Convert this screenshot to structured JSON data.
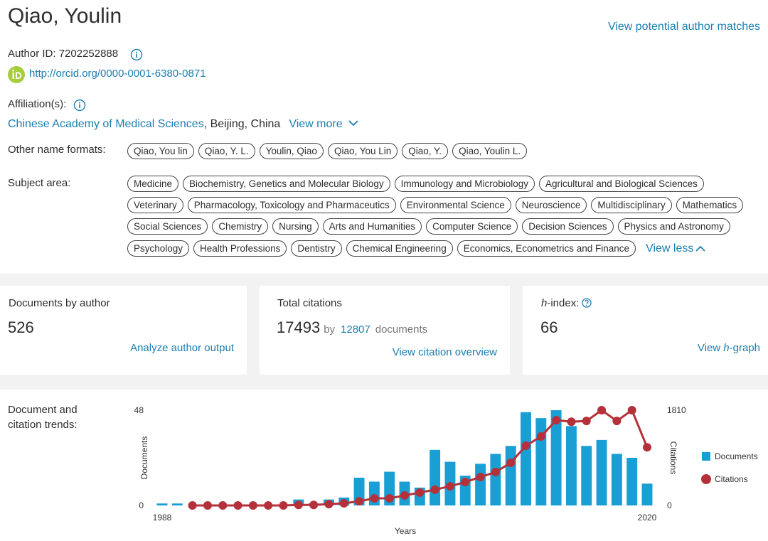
{
  "header": {
    "name": "Qiao, Youlin",
    "potential_matches": "View potential author matches",
    "author_id": "Author ID: 7202252888",
    "orcid": "http://orcid.org/0000-0001-6380-0871",
    "affiliation_label": "Affiliation(s):",
    "affiliation_link": "Chinese Academy of Medical Sciences",
    "affiliation_rest": ", Beijing, China",
    "view_more": "View more"
  },
  "name_formats": {
    "label": "Other name formats:",
    "items": [
      "Qiao, You lin",
      "Qiao, Y. L.",
      "Youlin, Qiao",
      "Qiao, You Lin",
      "Qiao, Y.",
      "Qiao, Youlin L."
    ]
  },
  "subjects": {
    "label": "Subject area:",
    "rows": [
      [
        "Medicine",
        "Biochemistry, Genetics and Molecular Biology",
        "Immunology and Microbiology",
        "Agricultural and Biological Sciences"
      ],
      [
        "Veterinary",
        "Pharmacology, Toxicology and Pharmaceutics",
        "Environmental Science",
        "Neuroscience",
        "Multidisciplinary",
        "Mathematics"
      ],
      [
        "Social Sciences",
        "Chemistry",
        "Nursing",
        "Arts and Humanities",
        "Computer Science",
        "Decision Sciences",
        "Physics and Astronomy"
      ],
      [
        "Psychology",
        "Health Professions",
        "Dentistry",
        "Chemical Engineering",
        "Economics, Econometrics and Finance"
      ]
    ],
    "view_less": "View less"
  },
  "metrics": {
    "documents": {
      "label": "Documents by author",
      "value": 526,
      "link": "Analyze author output"
    },
    "citations": {
      "label": "Total citations",
      "value": 17493,
      "by": "by",
      "count": 12807,
      "suffix": "documents",
      "link": "View citation overview"
    },
    "hindex": {
      "label_em": "h",
      "label": "-index:",
      "value": 66,
      "link": "View ",
      "link_em": "h",
      "link_suffix": "-graph"
    }
  },
  "trends_label": "Document and citation trends:",
  "chart_data": {
    "type": "bar_line",
    "x_label": "Years",
    "y_label": "Documents",
    "y2_label": "Citations",
    "x": [
      1988,
      1989,
      1990,
      1991,
      1992,
      1993,
      1994,
      1995,
      1996,
      1997,
      1998,
      1999,
      2000,
      2001,
      2002,
      2003,
      2004,
      2005,
      2006,
      2007,
      2008,
      2009,
      2010,
      2011,
      2012,
      2013,
      2014,
      2015,
      2016,
      2017,
      2018,
      2019,
      2020
    ],
    "xlim": [
      1988,
      2020
    ],
    "xticks": [
      1988,
      2020
    ],
    "ylim": [
      0,
      48
    ],
    "yticks": [
      0,
      48
    ],
    "y2lim": [
      0,
      1810
    ],
    "y2ticks": [
      0,
      1810
    ],
    "legend": "right",
    "series": [
      {
        "name": "Documents",
        "type": "bar",
        "color": "#1a9fd4",
        "values": [
          1,
          1,
          0,
          0,
          0,
          0,
          0,
          0,
          0,
          3,
          1,
          3,
          4,
          14,
          12,
          17,
          12,
          9,
          28,
          22,
          15,
          21,
          26,
          30,
          47,
          44,
          48,
          40,
          30,
          33,
          26,
          24,
          11
        ]
      },
      {
        "name": "Citations",
        "type": "line",
        "axis": "y2",
        "color": "#b5313a",
        "values": [
          null,
          null,
          0,
          0,
          0,
          0,
          0,
          0,
          0,
          10,
          10,
          25,
          40,
          80,
          135,
          135,
          190,
          245,
          300,
          365,
          445,
          540,
          635,
          810,
          1135,
          1310,
          1620,
          1590,
          1605,
          1810,
          1605,
          1810,
          1105
        ]
      }
    ]
  }
}
